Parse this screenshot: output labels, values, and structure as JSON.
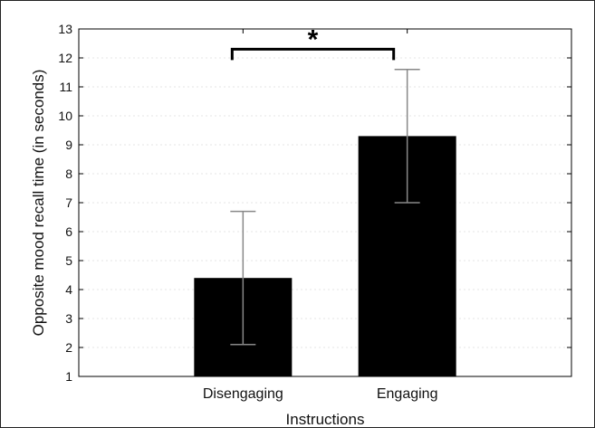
{
  "chart_data": {
    "type": "bar",
    "categories": [
      "Disengaging",
      "Engaging"
    ],
    "values": [
      4.4,
      9.3
    ],
    "error_bars": [
      {
        "low": 2.1,
        "high": 6.7
      },
      {
        "low": 7.0,
        "high": 11.6
      }
    ],
    "xlabel": "Instructions",
    "ylabel": "Opposite mood recall time (in seconds)",
    "ylim": [
      1,
      13
    ],
    "yticks": [
      1,
      2,
      3,
      4,
      5,
      6,
      7,
      8,
      9,
      10,
      11,
      12,
      13
    ],
    "grid": false,
    "significance": {
      "label": "*",
      "between": [
        "Disengaging",
        "Engaging"
      ],
      "y": 12.3
    },
    "colors": {
      "bar": "#000000",
      "error_bar": "#888888",
      "axis": "#000000"
    }
  }
}
